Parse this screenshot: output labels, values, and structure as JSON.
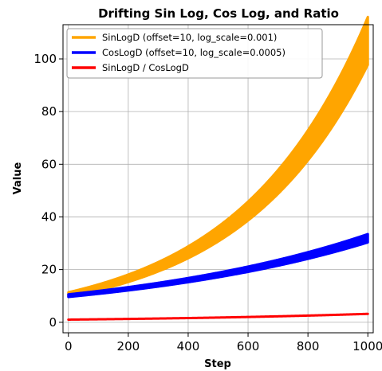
{
  "chart_data": {
    "type": "line",
    "title": "Drifting Sin Log, Cos Log, and Ratio",
    "xlabel": "Step",
    "ylabel": "Value",
    "xlim": [
      -18,
      1018
    ],
    "ylim": [
      -4,
      113
    ],
    "xticks": [
      0,
      200,
      400,
      600,
      800,
      1000
    ],
    "yticks": [
      0,
      20,
      40,
      60,
      80,
      100
    ],
    "grid": true,
    "legend_position": "top-left",
    "x": [
      0,
      100,
      200,
      300,
      400,
      500,
      600,
      700,
      800,
      900,
      1000
    ],
    "series": [
      {
        "name": "SinLogD (offset=10, log_scale=0.001)",
        "color": "#FFA500",
        "model": "exp_band",
        "start": 10.5,
        "growth": 0.00232,
        "band_fraction": 0.085,
        "values": [
          10.5,
          13.2,
          16.6,
          20.9,
          26.3,
          33.1,
          41.7,
          52.5,
          66.1,
          83.2,
          104.7
        ]
      },
      {
        "name": "CosLogD (offset=10, log_scale=0.0005)",
        "color": "#0000FF",
        "model": "exp_band",
        "start": 10.1,
        "growth": 0.00115,
        "band_fraction": 0.05,
        "values": [
          10.1,
          11.3,
          12.7,
          14.3,
          16.0,
          18.0,
          20.2,
          22.6,
          25.3,
          28.4,
          31.9
        ]
      },
      {
        "name": "SinLogD / CosLogD",
        "color": "#FF0000",
        "model": "exp_line",
        "start": 1.0,
        "growth": 0.00116,
        "band_fraction": 0,
        "values": [
          1.0,
          1.12,
          1.26,
          1.42,
          1.59,
          1.79,
          2.0,
          2.25,
          2.53,
          2.84,
          3.19
        ]
      }
    ]
  }
}
